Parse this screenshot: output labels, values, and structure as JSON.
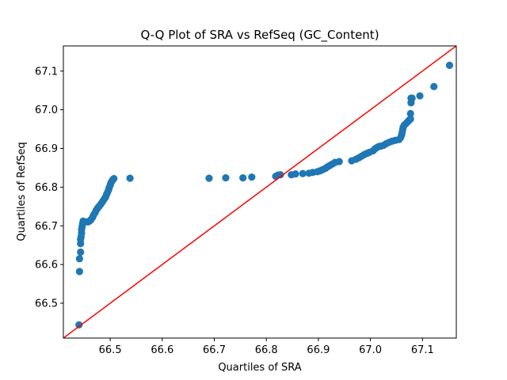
{
  "chart_data": {
    "type": "scatter",
    "title": "Q-Q Plot of SRA vs RefSeq (GC_Content)",
    "xlabel": "Quartiles of SRA",
    "ylabel": "Quartiles of RefSeq",
    "xlim": [
      66.41,
      67.165
    ],
    "ylim": [
      66.41,
      67.165
    ],
    "xticks": [
      66.5,
      66.6,
      66.7,
      66.8,
      66.9,
      67.0,
      67.1
    ],
    "xtick_labels": [
      "66.5",
      "66.6",
      "66.7",
      "66.8",
      "66.9",
      "67.0",
      "67.1"
    ],
    "yticks": [
      66.5,
      66.6,
      66.7,
      66.8,
      66.9,
      67.0,
      67.1
    ],
    "ytick_labels": [
      "66.5",
      "66.6",
      "66.7",
      "66.8",
      "66.9",
      "67.0",
      "67.1"
    ],
    "grid": false,
    "point_color": "#1f77b4",
    "line_color": "#ff0000",
    "reference_line": {
      "from": [
        66.41,
        66.41
      ],
      "to": [
        67.165,
        67.165
      ]
    },
    "points": [
      [
        66.44,
        66.444
      ],
      [
        66.441,
        66.582
      ],
      [
        66.441,
        66.615
      ],
      [
        66.443,
        66.632
      ],
      [
        66.443,
        66.654
      ],
      [
        66.443,
        66.665
      ],
      [
        66.444,
        66.672
      ],
      [
        66.445,
        66.681
      ],
      [
        66.445,
        66.69
      ],
      [
        66.446,
        66.698
      ],
      [
        66.447,
        66.706
      ],
      [
        66.448,
        66.712
      ],
      [
        66.452,
        66.71
      ],
      [
        66.457,
        66.71
      ],
      [
        66.46,
        66.712
      ],
      [
        66.463,
        66.716
      ],
      [
        66.466,
        66.722
      ],
      [
        66.468,
        66.728
      ],
      [
        66.471,
        66.734
      ],
      [
        66.473,
        66.74
      ],
      [
        66.476,
        66.746
      ],
      [
        66.479,
        66.751
      ],
      [
        66.482,
        66.756
      ],
      [
        66.485,
        66.762
      ],
      [
        66.488,
        66.768
      ],
      [
        66.491,
        66.774
      ],
      [
        66.493,
        66.781
      ],
      [
        66.495,
        66.787
      ],
      [
        66.497,
        66.793
      ],
      [
        66.498,
        66.799
      ],
      [
        66.5,
        66.805
      ],
      [
        66.501,
        66.81
      ],
      [
        66.503,
        66.815
      ],
      [
        66.505,
        66.819
      ],
      [
        66.507,
        66.822
      ],
      [
        66.538,
        66.823
      ],
      [
        66.69,
        66.823
      ],
      [
        66.722,
        66.824
      ],
      [
        66.755,
        66.824
      ],
      [
        66.772,
        66.826
      ],
      [
        66.818,
        66.828
      ],
      [
        66.822,
        66.831
      ],
      [
        66.827,
        66.832
      ],
      [
        66.848,
        66.832
      ],
      [
        66.856,
        66.834
      ],
      [
        66.87,
        66.835
      ],
      [
        66.882,
        66.836
      ],
      [
        66.889,
        66.838
      ],
      [
        66.898,
        66.84
      ],
      [
        66.903,
        66.842
      ],
      [
        66.908,
        66.845
      ],
      [
        66.913,
        66.848
      ],
      [
        66.917,
        66.852
      ],
      [
        66.922,
        66.856
      ],
      [
        66.927,
        66.86
      ],
      [
        66.932,
        66.864
      ],
      [
        66.94,
        66.866
      ],
      [
        66.964,
        66.868
      ],
      [
        66.972,
        66.872
      ],
      [
        66.978,
        66.876
      ],
      [
        66.983,
        66.88
      ],
      [
        66.988,
        66.884
      ],
      [
        66.993,
        66.887
      ],
      [
        66.998,
        66.89
      ],
      [
        67.005,
        66.894
      ],
      [
        67.008,
        66.898
      ],
      [
        67.012,
        66.902
      ],
      [
        67.016,
        66.905
      ],
      [
        67.02,
        66.906
      ],
      [
        67.025,
        66.908
      ],
      [
        67.03,
        66.912
      ],
      [
        67.036,
        66.916
      ],
      [
        67.042,
        66.919
      ],
      [
        67.048,
        66.921
      ],
      [
        67.055,
        66.923
      ],
      [
        67.058,
        66.928
      ],
      [
        67.06,
        66.935
      ],
      [
        67.061,
        66.942
      ],
      [
        67.062,
        66.949
      ],
      [
        67.063,
        66.955
      ],
      [
        67.065,
        66.96
      ],
      [
        67.068,
        66.964
      ],
      [
        67.071,
        66.968
      ],
      [
        67.073,
        66.971
      ],
      [
        67.075,
        66.974
      ],
      [
        67.077,
        66.976
      ],
      [
        67.077,
        66.99
      ],
      [
        67.078,
        67.018
      ],
      [
        67.078,
        67.03
      ],
      [
        67.08,
        67.03
      ],
      [
        67.095,
        67.036
      ],
      [
        67.122,
        67.06
      ],
      [
        67.152,
        67.115
      ]
    ]
  }
}
